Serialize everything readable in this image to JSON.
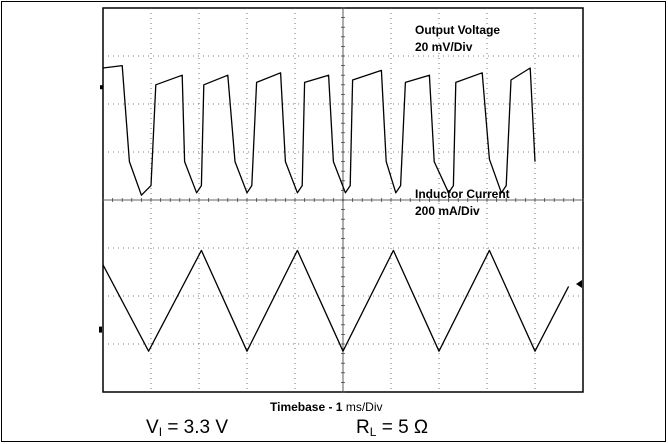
{
  "chart_data": {
    "type": "line",
    "title": "",
    "grid": true,
    "divisions": {
      "x": 10,
      "y": 8
    },
    "series": [
      {
        "name": "Output Voltage",
        "scale": "20 mV/Div",
        "x": [
          0.0,
          0.4,
          0.55,
          0.8,
          1.0,
          1.1,
          1.65,
          1.7,
          1.95,
          2.05,
          2.1,
          2.6,
          2.75,
          3.0,
          3.1,
          3.2,
          3.7,
          3.8,
          4.05,
          4.15,
          4.2,
          4.7,
          4.8,
          5.05,
          5.15,
          5.2,
          5.8,
          5.9,
          6.1,
          6.2,
          6.3,
          6.8,
          6.9,
          7.2,
          7.3,
          7.35,
          7.9,
          8.05,
          8.3,
          8.4,
          8.5,
          8.9,
          9.0
        ],
        "y": [
          6.75,
          6.8,
          4.8,
          4.1,
          4.3,
          6.4,
          6.6,
          4.8,
          4.15,
          4.3,
          6.4,
          6.6,
          4.8,
          4.15,
          4.3,
          6.45,
          6.65,
          4.8,
          4.15,
          4.3,
          6.45,
          6.6,
          4.8,
          4.15,
          4.3,
          6.5,
          6.7,
          4.8,
          4.15,
          4.3,
          6.45,
          6.6,
          4.8,
          4.15,
          4.3,
          6.45,
          6.65,
          4.85,
          4.15,
          4.3,
          6.5,
          6.75,
          4.8
        ]
      },
      {
        "name": "Inductor Current",
        "scale": "200 mA/Div",
        "x": [
          0.0,
          0.95,
          2.05,
          3.0,
          4.05,
          5.0,
          6.05,
          7.0,
          8.05,
          9.0,
          9.7
        ],
        "y": [
          2.65,
          0.85,
          2.95,
          0.85,
          2.95,
          0.85,
          2.95,
          0.85,
          2.95,
          0.85,
          2.2
        ]
      }
    ],
    "annotations": {
      "voltage_name": "Output Voltage",
      "voltage_scale": "20 mV/Div",
      "current_name": "Inductor Current",
      "current_scale": "200 mA/Div",
      "timebase_prefix": "Timebase - 1 ",
      "timebase_unit": "ms/Div"
    },
    "conditions": [
      {
        "symbol": "V",
        "subscript": "I",
        "value": "= 3.3 V"
      },
      {
        "symbol": "R",
        "subscript": "L",
        "value": "= 5 Ω"
      }
    ]
  }
}
